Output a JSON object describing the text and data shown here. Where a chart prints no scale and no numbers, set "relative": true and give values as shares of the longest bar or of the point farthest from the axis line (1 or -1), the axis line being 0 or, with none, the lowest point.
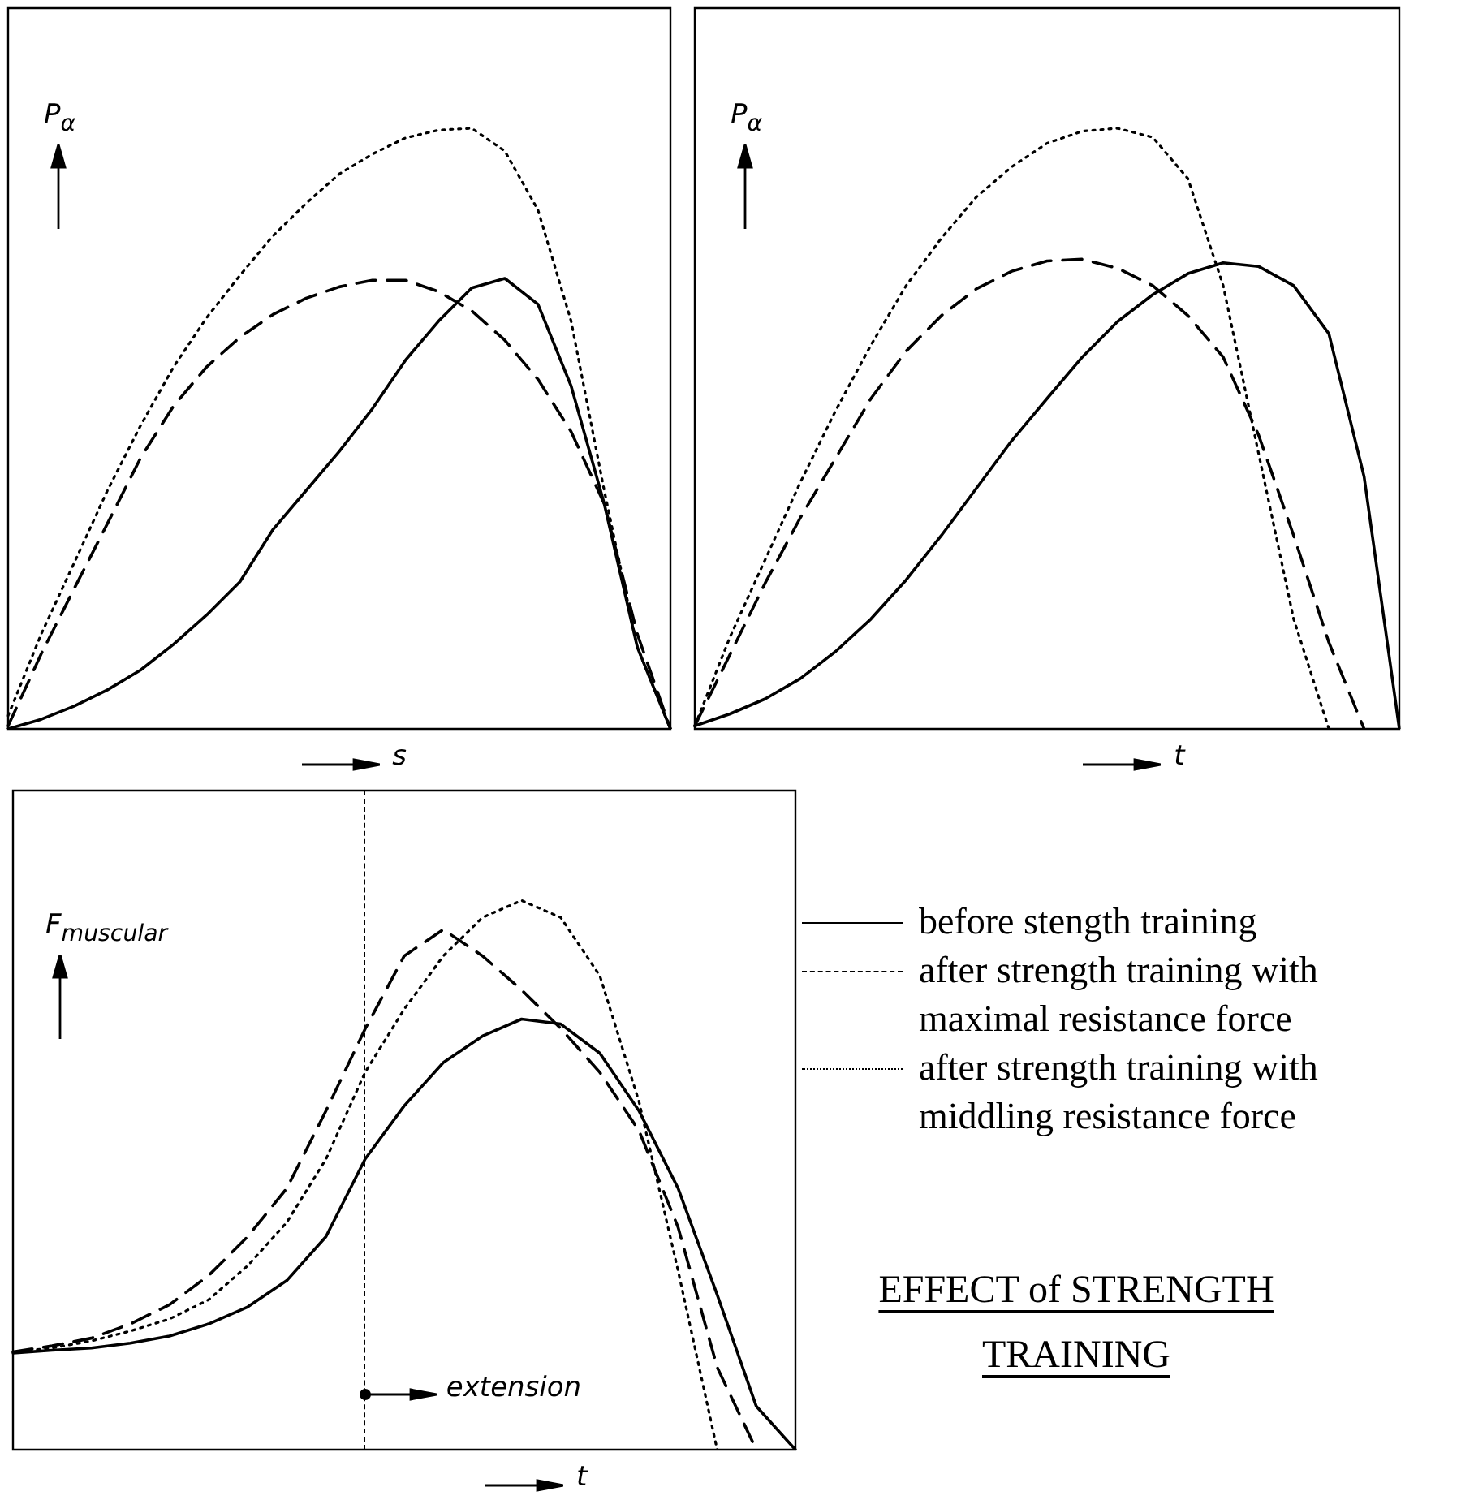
{
  "chart_data": [
    {
      "type": "line",
      "relative": true,
      "ylabel": "P$_{α}$",
      "xlabel": "s",
      "categories": [
        null,
        null,
        null,
        null,
        null,
        null,
        null,
        null,
        null,
        null,
        null,
        null,
        null,
        null,
        null,
        null,
        null,
        null,
        null,
        null,
        null
      ],
      "series": [
        {
          "color": "#000000",
          "line_style": "solid",
          "values": [
            0,
            0.016,
            0.038,
            0.065,
            0.098,
            0.141,
            0.19,
            0.245,
            0.332,
            0.397,
            0.462,
            0.533,
            0.614,
            0.679,
            0.734,
            0.75,
            0.707,
            0.571,
            0.375,
            0.136,
            0
          ]
        },
        {
          "color": "#000000",
          "line_style": "dashed",
          "values": [
            0.005,
            0.125,
            0.234,
            0.342,
            0.451,
            0.538,
            0.603,
            0.652,
            0.69,
            0.717,
            0.736,
            0.747,
            0.747,
            0.728,
            0.696,
            0.647,
            0.582,
            0.495,
            0.375,
            0.158,
            0
          ]
        },
        {
          "color": "#000000",
          "line_style": "dotted",
          "values": [
            0.022,
            0.158,
            0.277,
            0.397,
            0.505,
            0.603,
            0.685,
            0.755,
            0.821,
            0.875,
            0.924,
            0.957,
            0.984,
            0.997,
            1,
            0.962,
            0.864,
            0.679,
            0.397,
            0.136,
            0
          ]
        }
      ]
    },
    {
      "type": "line",
      "relative": true,
      "ylabel": "P$_{α}$",
      "xlabel": "t",
      "categories": [
        null,
        null,
        null,
        null,
        null,
        null,
        null,
        null,
        null,
        null,
        null,
        null,
        null,
        null,
        null,
        null,
        null,
        null,
        null,
        null,
        null
      ],
      "series": [
        {
          "color": "#000000",
          "line_style": "solid",
          "values": [
            0.005,
            0.025,
            0.05,
            0.084,
            0.129,
            0.183,
            0.248,
            0.322,
            0.401,
            0.48,
            0.55,
            0.619,
            0.678,
            0.723,
            0.758,
            0.776,
            0.77,
            0.738,
            0.658,
            0.42,
            0
          ]
        },
        {
          "color": "#000000",
          "line_style": "dashed",
          "values": [
            0.005,
            0.124,
            0.243,
            0.352,
            0.451,
            0.55,
            0.629,
            0.688,
            0.733,
            0.762,
            0.779,
            0.782,
            0.767,
            0.738,
            0.688,
            0.619,
            0.49,
            0.322,
            0.144,
            0,
            null
          ]
        },
        {
          "color": "#000000",
          "line_style": "dotted",
          "values": [
            0.005,
            0.153,
            0.282,
            0.411,
            0.53,
            0.639,
            0.738,
            0.817,
            0.886,
            0.936,
            0.975,
            0.995,
            1,
            0.985,
            0.916,
            0.738,
            0.46,
            0.183,
            0,
            null,
            null
          ]
        }
      ]
    },
    {
      "type": "line",
      "relative": true,
      "ylabel": "F$_{muscular}$",
      "xlabel": "t",
      "legend": "right",
      "categories": [
        null,
        null,
        null,
        null,
        null,
        null,
        null,
        null,
        null,
        null,
        null,
        null,
        null,
        null,
        null,
        null,
        null,
        null,
        null,
        null,
        null
      ],
      "annotations": [
        "extension"
      ],
      "series": [
        {
          "name": "before stength training",
          "color": "#000000",
          "line_style": "solid",
          "values": [
            0.176,
            0.181,
            0.185,
            0.194,
            0.207,
            0.229,
            0.26,
            0.308,
            0.388,
            0.529,
            0.626,
            0.705,
            0.753,
            0.784,
            0.775,
            0.722,
            0.617,
            0.476,
            0.282,
            0.079,
            0
          ]
        },
        {
          "name": "after strength training with maximal resistance force",
          "color": "#000000",
          "line_style": "dashed",
          "values": [
            0.178,
            0.189,
            0.203,
            0.229,
            0.264,
            0.317,
            0.388,
            0.476,
            0.617,
            0.766,
            0.899,
            0.947,
            0.899,
            0.837,
            0.767,
            0.687,
            0.581,
            0.405,
            0.15,
            0,
            null
          ]
        },
        {
          "name": "after strength training with middling resistance force",
          "color": "#000000",
          "line_style": "dotted",
          "values": [
            0.178,
            0.185,
            0.198,
            0.216,
            0.238,
            0.273,
            0.335,
            0.414,
            0.529,
            0.687,
            0.802,
            0.899,
            0.969,
            1,
            0.969,
            0.863,
            0.634,
            0.326,
            0,
            null,
            null
          ]
        }
      ]
    },
    {
      "type": "other",
      "title": "EFFECT of STRENGTH TRAINING"
    }
  ]
}
